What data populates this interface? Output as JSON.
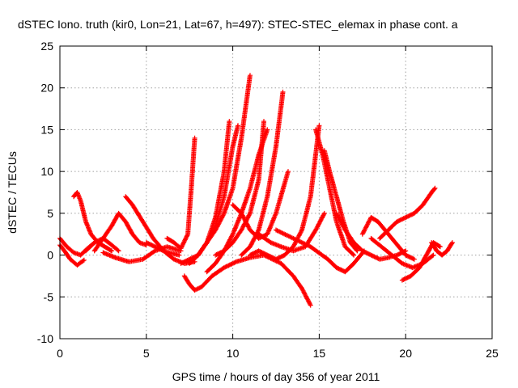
{
  "chart_data": {
    "type": "scatter",
    "title": "dSTEC Iono. truth (kir0, Lon=21, Lat=67, h=497): STEC-STEC_elemax in phase cont. a",
    "xlabel": "GPS time / hours of day 356 of year 2011",
    "ylabel": "dSTEC  / TECUs",
    "xlim": [
      0,
      25
    ],
    "ylim": [
      -10,
      25
    ],
    "xticks": [
      0,
      5,
      10,
      15,
      20,
      25
    ],
    "yticks": [
      -10,
      -5,
      0,
      5,
      10,
      15,
      20,
      25
    ],
    "grid": true,
    "marker": "plus",
    "color": "#ff0000",
    "series": [
      {
        "x": [
          0.0,
          0.4,
          0.8,
          1.2,
          1.6,
          2.0
        ],
        "y": [
          2.0,
          1.0,
          0.3,
          0.0,
          0.8,
          1.5
        ]
      },
      {
        "x": [
          0.0,
          0.3,
          0.6,
          1.0,
          1.4
        ],
        "y": [
          1.2,
          0.4,
          -0.5,
          -1.2,
          -0.6
        ]
      },
      {
        "x": [
          0.8,
          1.0,
          1.2,
          1.5,
          1.8,
          2.2,
          2.6,
          3.0
        ],
        "y": [
          7.0,
          7.5,
          6.5,
          4.0,
          2.5,
          1.5,
          1.0,
          0.5
        ]
      },
      {
        "x": [
          1.5,
          2.0,
          2.5,
          3.0,
          3.4
        ],
        "y": [
          0.5,
          1.5,
          2.0,
          1.2,
          0.5
        ]
      },
      {
        "x": [
          2.0,
          2.5,
          3.0,
          3.4,
          3.8,
          4.2,
          4.6,
          5.0
        ],
        "y": [
          0.5,
          2.0,
          3.5,
          5.0,
          4.0,
          2.5,
          1.5,
          1.2
        ]
      },
      {
        "x": [
          3.8,
          4.2,
          4.8,
          5.4,
          6.0,
          6.6,
          7.2,
          7.8
        ],
        "y": [
          7.0,
          6.0,
          4.0,
          2.0,
          0.5,
          -0.5,
          -1.0,
          -0.8
        ]
      },
      {
        "x": [
          2.5,
          3.2,
          4.0,
          4.8,
          5.5,
          6.2,
          7.0
        ],
        "y": [
          0.3,
          -0.3,
          -0.8,
          -0.5,
          0.5,
          1.0,
          0.5
        ]
      },
      {
        "x": [
          5.0,
          5.5,
          6.0,
          6.5,
          6.9
        ],
        "y": [
          1.5,
          1.0,
          0.5,
          0.2,
          0.0
        ]
      },
      {
        "x": [
          6.2,
          6.6,
          7.0,
          7.4,
          7.6,
          7.8
        ],
        "y": [
          2.0,
          1.5,
          0.8,
          2.5,
          8.0,
          14.0
        ]
      },
      {
        "x": [
          7.2,
          7.5,
          7.8,
          8.2,
          8.8,
          9.5,
          10.2,
          11.0,
          11.8,
          12.8,
          13.5,
          14.0,
          14.5
        ],
        "y": [
          -2.5,
          -3.5,
          -4.2,
          -3.8,
          -2.5,
          -1.5,
          -0.8,
          -0.3,
          0.0,
          -1.0,
          -2.5,
          -4.0,
          -6.0
        ]
      },
      {
        "x": [
          7.0,
          7.5,
          8.0,
          8.5,
          9.0,
          9.5,
          9.8
        ],
        "y": [
          -1.0,
          -0.5,
          0.0,
          1.5,
          4.5,
          10.0,
          16.0
        ]
      },
      {
        "x": [
          7.5,
          8.0,
          8.5,
          9.0,
          9.5,
          10.0,
          10.3
        ],
        "y": [
          -1.0,
          0.0,
          1.5,
          3.5,
          7.0,
          13.0,
          15.5
        ]
      },
      {
        "x": [
          8.0,
          8.5,
          9.0,
          9.5,
          10.0,
          10.5,
          11.0
        ],
        "y": [
          0.0,
          1.5,
          3.0,
          5.0,
          8.0,
          14.0,
          21.5
        ]
      },
      {
        "x": [
          8.5,
          9.0,
          9.5,
          10.0,
          10.5,
          11.0,
          11.5,
          12.0
        ],
        "y": [
          -2.0,
          -1.0,
          0.5,
          2.5,
          5.0,
          8.0,
          12.0,
          15.0
        ]
      },
      {
        "x": [
          9.0,
          9.5,
          10.0,
          10.5,
          11.0,
          11.5,
          11.8
        ],
        "y": [
          0.0,
          0.5,
          1.5,
          3.0,
          5.0,
          9.0,
          16.0
        ]
      },
      {
        "x": [
          10.5,
          11.0,
          11.5,
          12.0,
          12.5,
          12.9
        ],
        "y": [
          0.0,
          1.0,
          3.0,
          7.0,
          13.0,
          19.5
        ]
      },
      {
        "x": [
          10.0,
          10.5,
          11.0,
          11.5,
          12.0,
          12.5,
          13.2
        ],
        "y": [
          6.0,
          5.0,
          3.0,
          2.0,
          2.5,
          5.0,
          10.0
        ]
      },
      {
        "x": [
          11.0,
          11.5,
          12.0,
          12.5,
          13.0,
          13.5,
          14.0,
          14.5,
          15.0
        ],
        "y": [
          0.0,
          0.5,
          0.0,
          -0.5,
          0.0,
          1.0,
          3.0,
          7.0,
          15.5
        ]
      },
      {
        "x": [
          11.5,
          12.2,
          12.8,
          13.5,
          14.2,
          14.8,
          15.3
        ],
        "y": [
          2.5,
          1.5,
          1.0,
          0.5,
          1.0,
          3.0,
          5.0
        ]
      },
      {
        "x": [
          14.8,
          15.2,
          15.6,
          16.0,
          16.5,
          17.0
        ],
        "y": [
          15.0,
          12.0,
          8.0,
          4.0,
          1.0,
          0.0
        ]
      },
      {
        "x": [
          15.3,
          15.6,
          16.0,
          16.4,
          16.8,
          17.2
        ],
        "y": [
          12.5,
          10.0,
          7.0,
          4.0,
          1.5,
          0.5
        ]
      },
      {
        "x": [
          12.5,
          13.5,
          14.5,
          15.5,
          16.0,
          16.5,
          17.0,
          17.6
        ],
        "y": [
          3.0,
          2.0,
          1.0,
          -0.5,
          -1.5,
          -2.0,
          -1.0,
          0.5
        ]
      },
      {
        "x": [
          16.0,
          16.5,
          17.0,
          17.5,
          18.0,
          18.5,
          19.0,
          19.5,
          20.0
        ],
        "y": [
          5.0,
          3.0,
          1.5,
          0.5,
          0.0,
          -0.5,
          -0.3,
          0.0,
          0.5
        ]
      },
      {
        "x": [
          17.5,
          18.0,
          18.4,
          18.8,
          19.2,
          19.6,
          20.0,
          20.5
        ],
        "y": [
          2.5,
          4.5,
          4.0,
          3.0,
          2.0,
          1.0,
          0.0,
          -0.5
        ]
      },
      {
        "x": [
          18.0,
          18.6,
          19.2,
          19.8,
          20.4,
          21.0,
          21.6
        ],
        "y": [
          2.0,
          1.0,
          0.0,
          -1.0,
          -1.5,
          -1.0,
          0.0
        ]
      },
      {
        "x": [
          18.5,
          19.0,
          19.5,
          20.0,
          20.5,
          21.0,
          21.5,
          21.7
        ],
        "y": [
          2.0,
          3.0,
          4.0,
          4.5,
          5.0,
          6.0,
          7.5,
          8.0
        ]
      },
      {
        "x": [
          19.8,
          20.3,
          20.8,
          21.2,
          21.6,
          22.0
        ],
        "y": [
          -3.0,
          -2.5,
          -1.5,
          0.0,
          1.5,
          1.0
        ]
      },
      {
        "x": [
          21.5,
          21.8,
          22.1,
          22.4,
          22.7
        ],
        "y": [
          1.5,
          0.5,
          0.0,
          0.5,
          1.5
        ]
      }
    ]
  }
}
